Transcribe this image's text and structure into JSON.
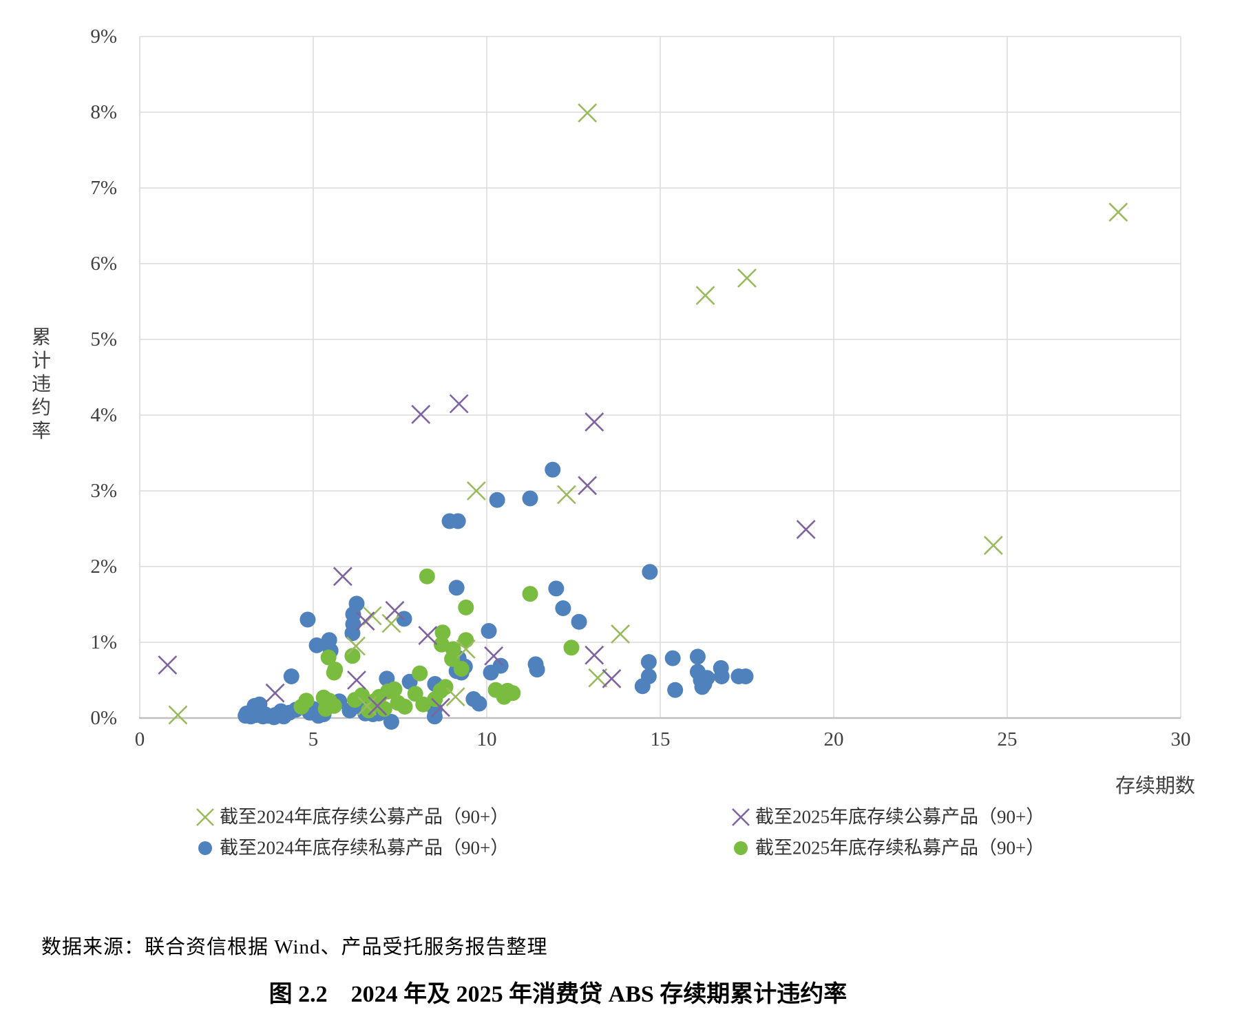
{
  "figure": {
    "caption": "图 2.2　2024 年及 2025 年消费贷 ABS 存续期累计违约率",
    "source": "数据来源：联合资信根据 Wind、产品受托服务报告整理"
  },
  "chart_data": {
    "type": "scatter",
    "title": "",
    "xlabel": "存续期数",
    "ylabel": "累计违约率",
    "xlim": [
      0,
      30
    ],
    "ylim": [
      0,
      9
    ],
    "x_ticks": [
      0,
      5,
      10,
      15,
      20,
      25,
      30
    ],
    "y_ticks": [
      0,
      1,
      2,
      3,
      4,
      5,
      6,
      7,
      8,
      9
    ],
    "y_tick_suffix": "%",
    "grid": true,
    "legend_position": "bottom",
    "style": {
      "grid_color": "#DCDCDC",
      "axis_color": "#C0C0C0",
      "tick_text_color": "#404040"
    },
    "series": [
      {
        "name": "截至2024年底存续公募产品（90+）",
        "marker": "x",
        "color": "#9ABA5E",
        "points": [
          [
            1.1,
            0.04
          ],
          [
            12.9,
            7.99
          ],
          [
            28.2,
            6.68
          ],
          [
            16.3,
            5.58
          ],
          [
            17.5,
            5.81
          ],
          [
            9.7,
            3.0
          ],
          [
            12.3,
            2.95
          ],
          [
            24.6,
            2.28
          ],
          [
            13.85,
            1.11
          ],
          [
            6.23,
            0.95
          ],
          [
            6.7,
            1.35
          ],
          [
            7.25,
            1.25
          ],
          [
            9.4,
            0.91
          ],
          [
            13.2,
            0.53
          ],
          [
            6.55,
            0.16
          ],
          [
            9.1,
            0.28
          ]
        ]
      },
      {
        "name": "截至2025年底存续公募产品（90+）",
        "marker": "x",
        "color": "#7E63A0",
        "points": [
          [
            0.8,
            0.7
          ],
          [
            8.1,
            4.01
          ],
          [
            9.2,
            4.15
          ],
          [
            13.1,
            3.91
          ],
          [
            12.9,
            3.07
          ],
          [
            19.2,
            2.49
          ],
          [
            5.85,
            1.87
          ],
          [
            7.35,
            1.42
          ],
          [
            6.5,
            1.28
          ],
          [
            8.3,
            1.09
          ],
          [
            10.2,
            0.82
          ],
          [
            13.1,
            0.83
          ],
          [
            13.6,
            0.52
          ],
          [
            3.9,
            0.33
          ],
          [
            6.25,
            0.5
          ],
          [
            6.85,
            0.16
          ],
          [
            8.67,
            0.14
          ]
        ]
      },
      {
        "name": "截至2024年底存续私募产品（90+）",
        "marker": "circle",
        "color": "#4F81BD",
        "points": [
          [
            11.9,
            3.28
          ],
          [
            10.3,
            2.88
          ],
          [
            11.25,
            2.9
          ],
          [
            8.93,
            2.6
          ],
          [
            9.17,
            2.6
          ],
          [
            14.7,
            1.93
          ],
          [
            9.13,
            1.72
          ],
          [
            12.0,
            1.71
          ],
          [
            12.2,
            1.45
          ],
          [
            12.66,
            1.27
          ],
          [
            10.06,
            1.15
          ],
          [
            4.84,
            1.3
          ],
          [
            6.25,
            1.51
          ],
          [
            6.15,
            1.37
          ],
          [
            6.15,
            1.24
          ],
          [
            6.13,
            1.12
          ],
          [
            7.62,
            1.31
          ],
          [
            5.1,
            0.96
          ],
          [
            5.46,
            1.03
          ],
          [
            5.5,
            0.89
          ],
          [
            4.37,
            0.55
          ],
          [
            9.19,
            0.79
          ],
          [
            9.37,
            0.68
          ],
          [
            9.13,
            0.62
          ],
          [
            9.27,
            0.6
          ],
          [
            10.4,
            0.69
          ],
          [
            10.12,
            0.6
          ],
          [
            11.41,
            0.71
          ],
          [
            11.45,
            0.64
          ],
          [
            7.12,
            0.52
          ],
          [
            7.78,
            0.48
          ],
          [
            8.51,
            0.45
          ],
          [
            14.67,
            0.74
          ],
          [
            14.67,
            0.55
          ],
          [
            14.49,
            0.42
          ],
          [
            15.36,
            0.79
          ],
          [
            15.43,
            0.37
          ],
          [
            16.08,
            0.81
          ],
          [
            16.08,
            0.61
          ],
          [
            16.17,
            0.5
          ],
          [
            16.27,
            0.45
          ],
          [
            16.35,
            0.53
          ],
          [
            16.21,
            0.41
          ],
          [
            16.75,
            0.66
          ],
          [
            16.77,
            0.55
          ],
          [
            17.26,
            0.55
          ],
          [
            17.46,
            0.55
          ],
          [
            3.05,
            0.03
          ],
          [
            3.08,
            0.06
          ],
          [
            3.2,
            0.02
          ],
          [
            3.31,
            0.16
          ],
          [
            3.35,
            0.04
          ],
          [
            3.45,
            0.18
          ],
          [
            3.47,
            0.06
          ],
          [
            3.55,
            0.02
          ],
          [
            3.61,
            0.05
          ],
          [
            3.7,
            0.03
          ],
          [
            3.87,
            0.01
          ],
          [
            3.9,
            0.04
          ],
          [
            4.07,
            0.09
          ],
          [
            4.15,
            0.02
          ],
          [
            4.31,
            0.07
          ],
          [
            4.5,
            0.11
          ],
          [
            4.9,
            0.07
          ],
          [
            5.0,
            0.12
          ],
          [
            5.15,
            0.03
          ],
          [
            5.3,
            0.05
          ],
          [
            5.75,
            0.22
          ],
          [
            6.05,
            0.1
          ],
          [
            6.35,
            0.15
          ],
          [
            6.5,
            0.06
          ],
          [
            6.72,
            0.05
          ],
          [
            6.89,
            0.06
          ],
          [
            7.25,
            -0.05
          ],
          [
            8.5,
            0.12
          ],
          [
            8.5,
            0.02
          ],
          [
            9.62,
            0.25
          ],
          [
            9.78,
            0.19
          ]
        ]
      },
      {
        "name": "截至2025年底存续私募产品（90+）",
        "marker": "circle",
        "color": "#79BC3F",
        "points": [
          [
            8.28,
            1.87
          ],
          [
            11.25,
            1.64
          ],
          [
            9.4,
            1.46
          ],
          [
            12.44,
            0.93
          ],
          [
            8.73,
            1.13
          ],
          [
            9.4,
            1.03
          ],
          [
            8.7,
            0.97
          ],
          [
            9.03,
            0.91
          ],
          [
            9.0,
            0.78
          ],
          [
            9.27,
            0.65
          ],
          [
            5.44,
            0.8
          ],
          [
            5.63,
            0.64
          ],
          [
            5.6,
            0.6
          ],
          [
            6.13,
            0.82
          ],
          [
            8.07,
            0.59
          ],
          [
            10.26,
            0.37
          ],
          [
            10.6,
            0.36
          ],
          [
            10.75,
            0.33
          ],
          [
            10.5,
            0.28
          ],
          [
            4.8,
            0.23
          ],
          [
            4.66,
            0.15
          ],
          [
            5.3,
            0.27
          ],
          [
            5.46,
            0.23
          ],
          [
            5.36,
            0.12
          ],
          [
            5.6,
            0.16
          ],
          [
            7.15,
            0.35
          ],
          [
            7.34,
            0.38
          ],
          [
            7.44,
            0.2
          ],
          [
            7.64,
            0.15
          ],
          [
            7.94,
            0.32
          ],
          [
            8.17,
            0.18
          ],
          [
            8.51,
            0.25
          ],
          [
            8.67,
            0.36
          ],
          [
            8.81,
            0.41
          ],
          [
            6.2,
            0.24
          ],
          [
            6.4,
            0.3
          ],
          [
            6.6,
            0.1
          ],
          [
            6.75,
            0.22
          ],
          [
            6.9,
            0.28
          ],
          [
            7.05,
            0.12
          ]
        ]
      }
    ]
  }
}
